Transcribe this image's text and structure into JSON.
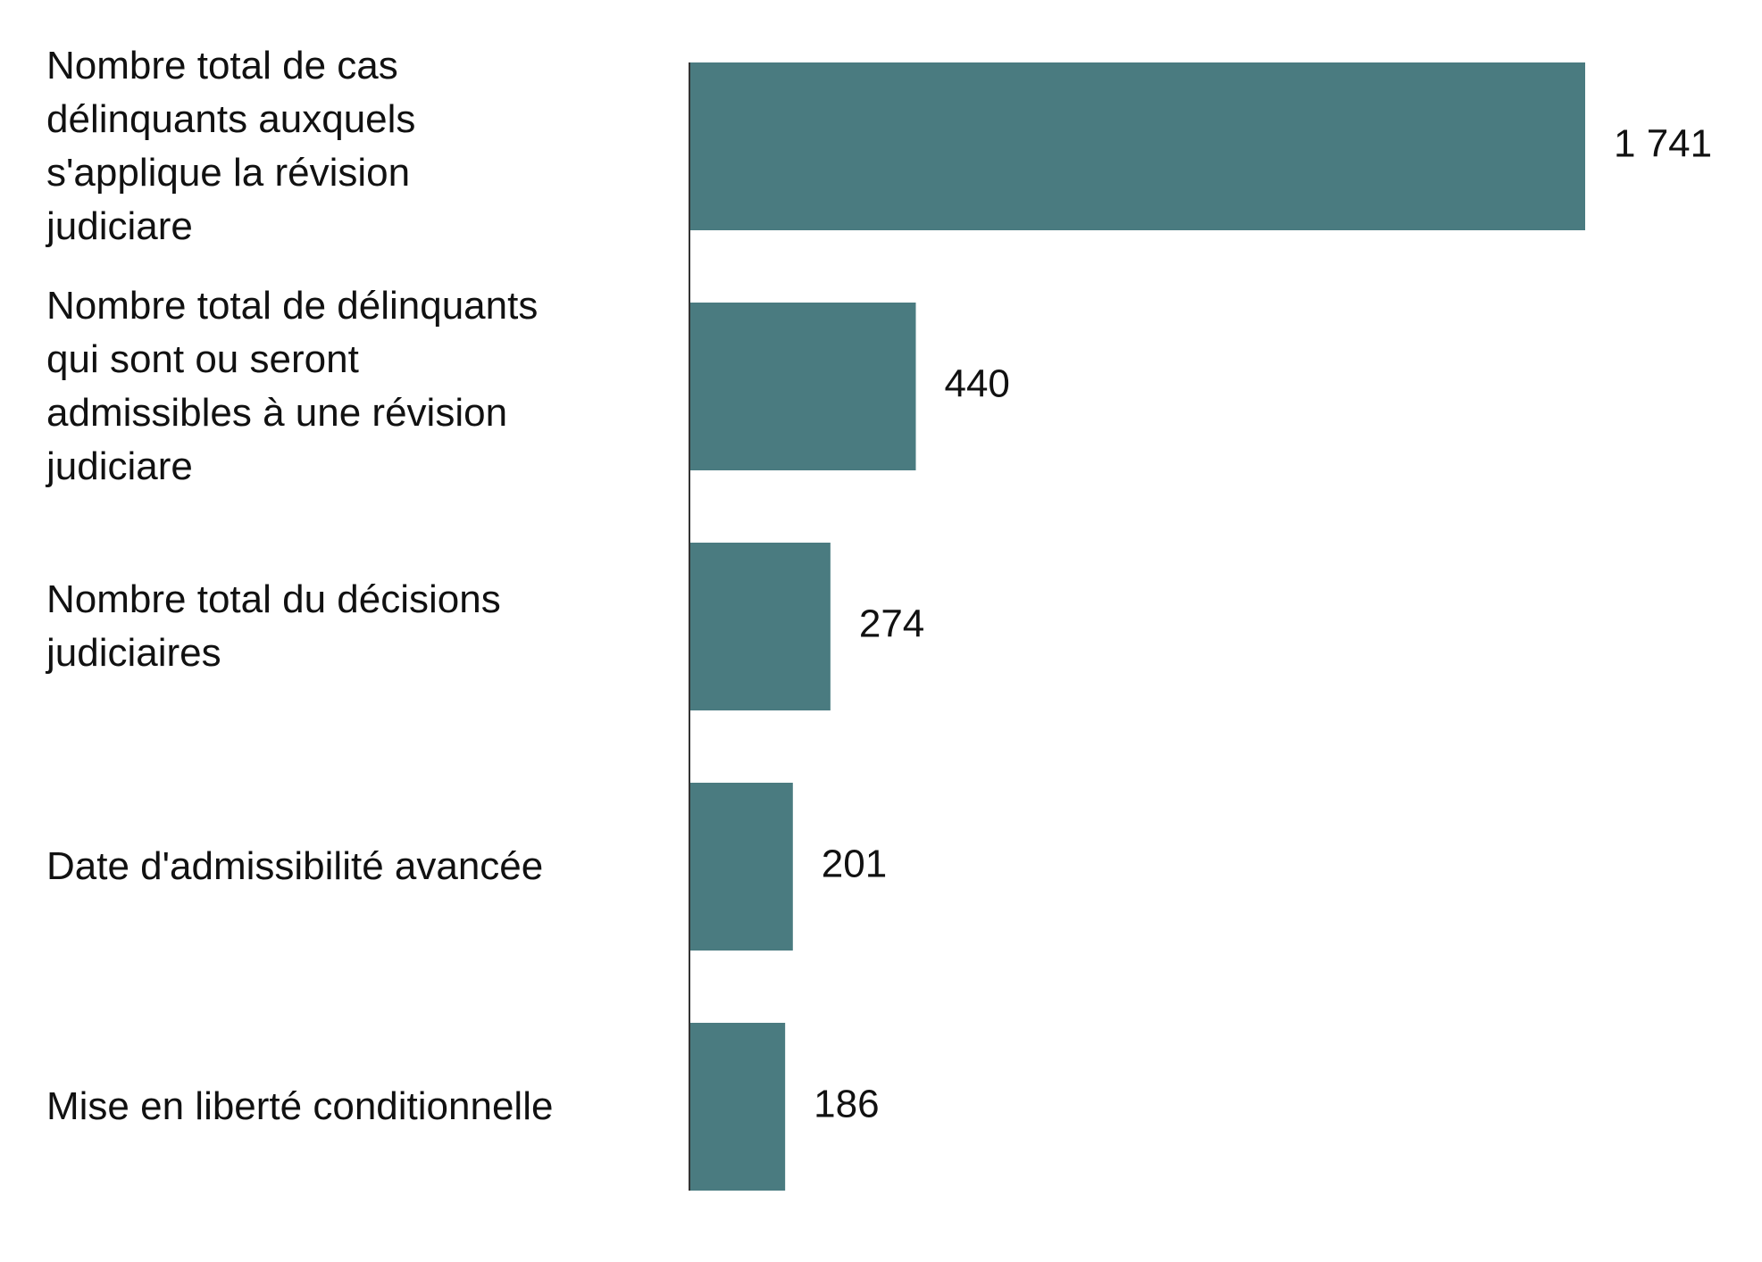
{
  "chart_data": {
    "type": "bar",
    "orientation": "horizontal",
    "categories": [
      "Nombre total de cas\ndélinquants auxquels\ns'applique la révision\njudiciare",
      "Nombre total de délinquants\nqui sont ou seront\nadmissibles à une révision\njudiciare",
      "Nombre total du décisions\njudiciaires",
      "Date d'admissibilité avancée",
      "Mise en liberté conditionnelle"
    ],
    "values": [
      1741,
      440,
      274,
      201,
      186
    ],
    "value_labels": [
      "1 741",
      "440",
      "274",
      "201",
      "186"
    ],
    "title": "",
    "xlabel": "",
    "ylabel": "",
    "xlim": [
      0,
      1741
    ],
    "grid": false,
    "legend": "none",
    "bar_color": "#4a7b80",
    "axis_color": "#333333"
  }
}
